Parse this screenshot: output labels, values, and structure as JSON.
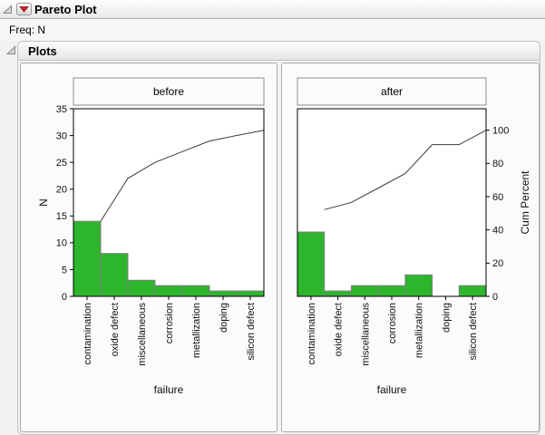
{
  "header": {
    "title": "Pareto Plot"
  },
  "freq_label": "Freq: N",
  "plots": {
    "title": "Plots"
  },
  "style": {
    "bar_color": "#2db52d",
    "bar_border": "#7f7f7f",
    "line_color": "#3c3c3c",
    "frame_color": "#000000",
    "text_color": "#101010",
    "panel_label_bg": "#fbfbfb",
    "panel_label_border": "#8c8c8c",
    "red_triangle_color": "#cd2129"
  },
  "chart_data": [
    {
      "type": "bar",
      "panel": "before",
      "categories": [
        "contamination",
        "oxide defect",
        "miscellaneous",
        "corrosion",
        "metallization",
        "doping",
        "silicon defect"
      ],
      "values": [
        14,
        8,
        3,
        2,
        2,
        1,
        1
      ],
      "cumulative": [
        14,
        22,
        25,
        27,
        29,
        30,
        31
      ],
      "cumulative_percent": [
        45.2,
        71.0,
        80.6,
        87.1,
        93.5,
        96.8,
        100
      ],
      "total": 31,
      "xlabel": "failure",
      "ylabel": "N",
      "ylim": [
        0,
        35
      ],
      "y_ticks": [
        0,
        5,
        10,
        15,
        20,
        25,
        30,
        35
      ],
      "axis_side": "left",
      "grid": false,
      "line_type": "cumulative-percent-curve"
    },
    {
      "type": "bar",
      "panel": "after",
      "categories": [
        "contamination",
        "oxide defect",
        "miscellaneous",
        "corrosion",
        "metallization",
        "doping",
        "silicon defect"
      ],
      "values": [
        12,
        1,
        2,
        2,
        4,
        0,
        2
      ],
      "cumulative": [
        12,
        13,
        15,
        17,
        21,
        21,
        23
      ],
      "cumulative_percent": [
        52.2,
        56.5,
        65.2,
        73.9,
        91.3,
        91.3,
        100
      ],
      "total": 23,
      "xlabel": "failure",
      "y2label": "Cum Percent",
      "ylim": [
        0,
        35
      ],
      "y2_ticks": [
        0,
        20,
        40,
        60,
        80,
        100
      ],
      "axis_side": "right",
      "grid": false,
      "line_type": "cumulative-percent-curve"
    }
  ]
}
